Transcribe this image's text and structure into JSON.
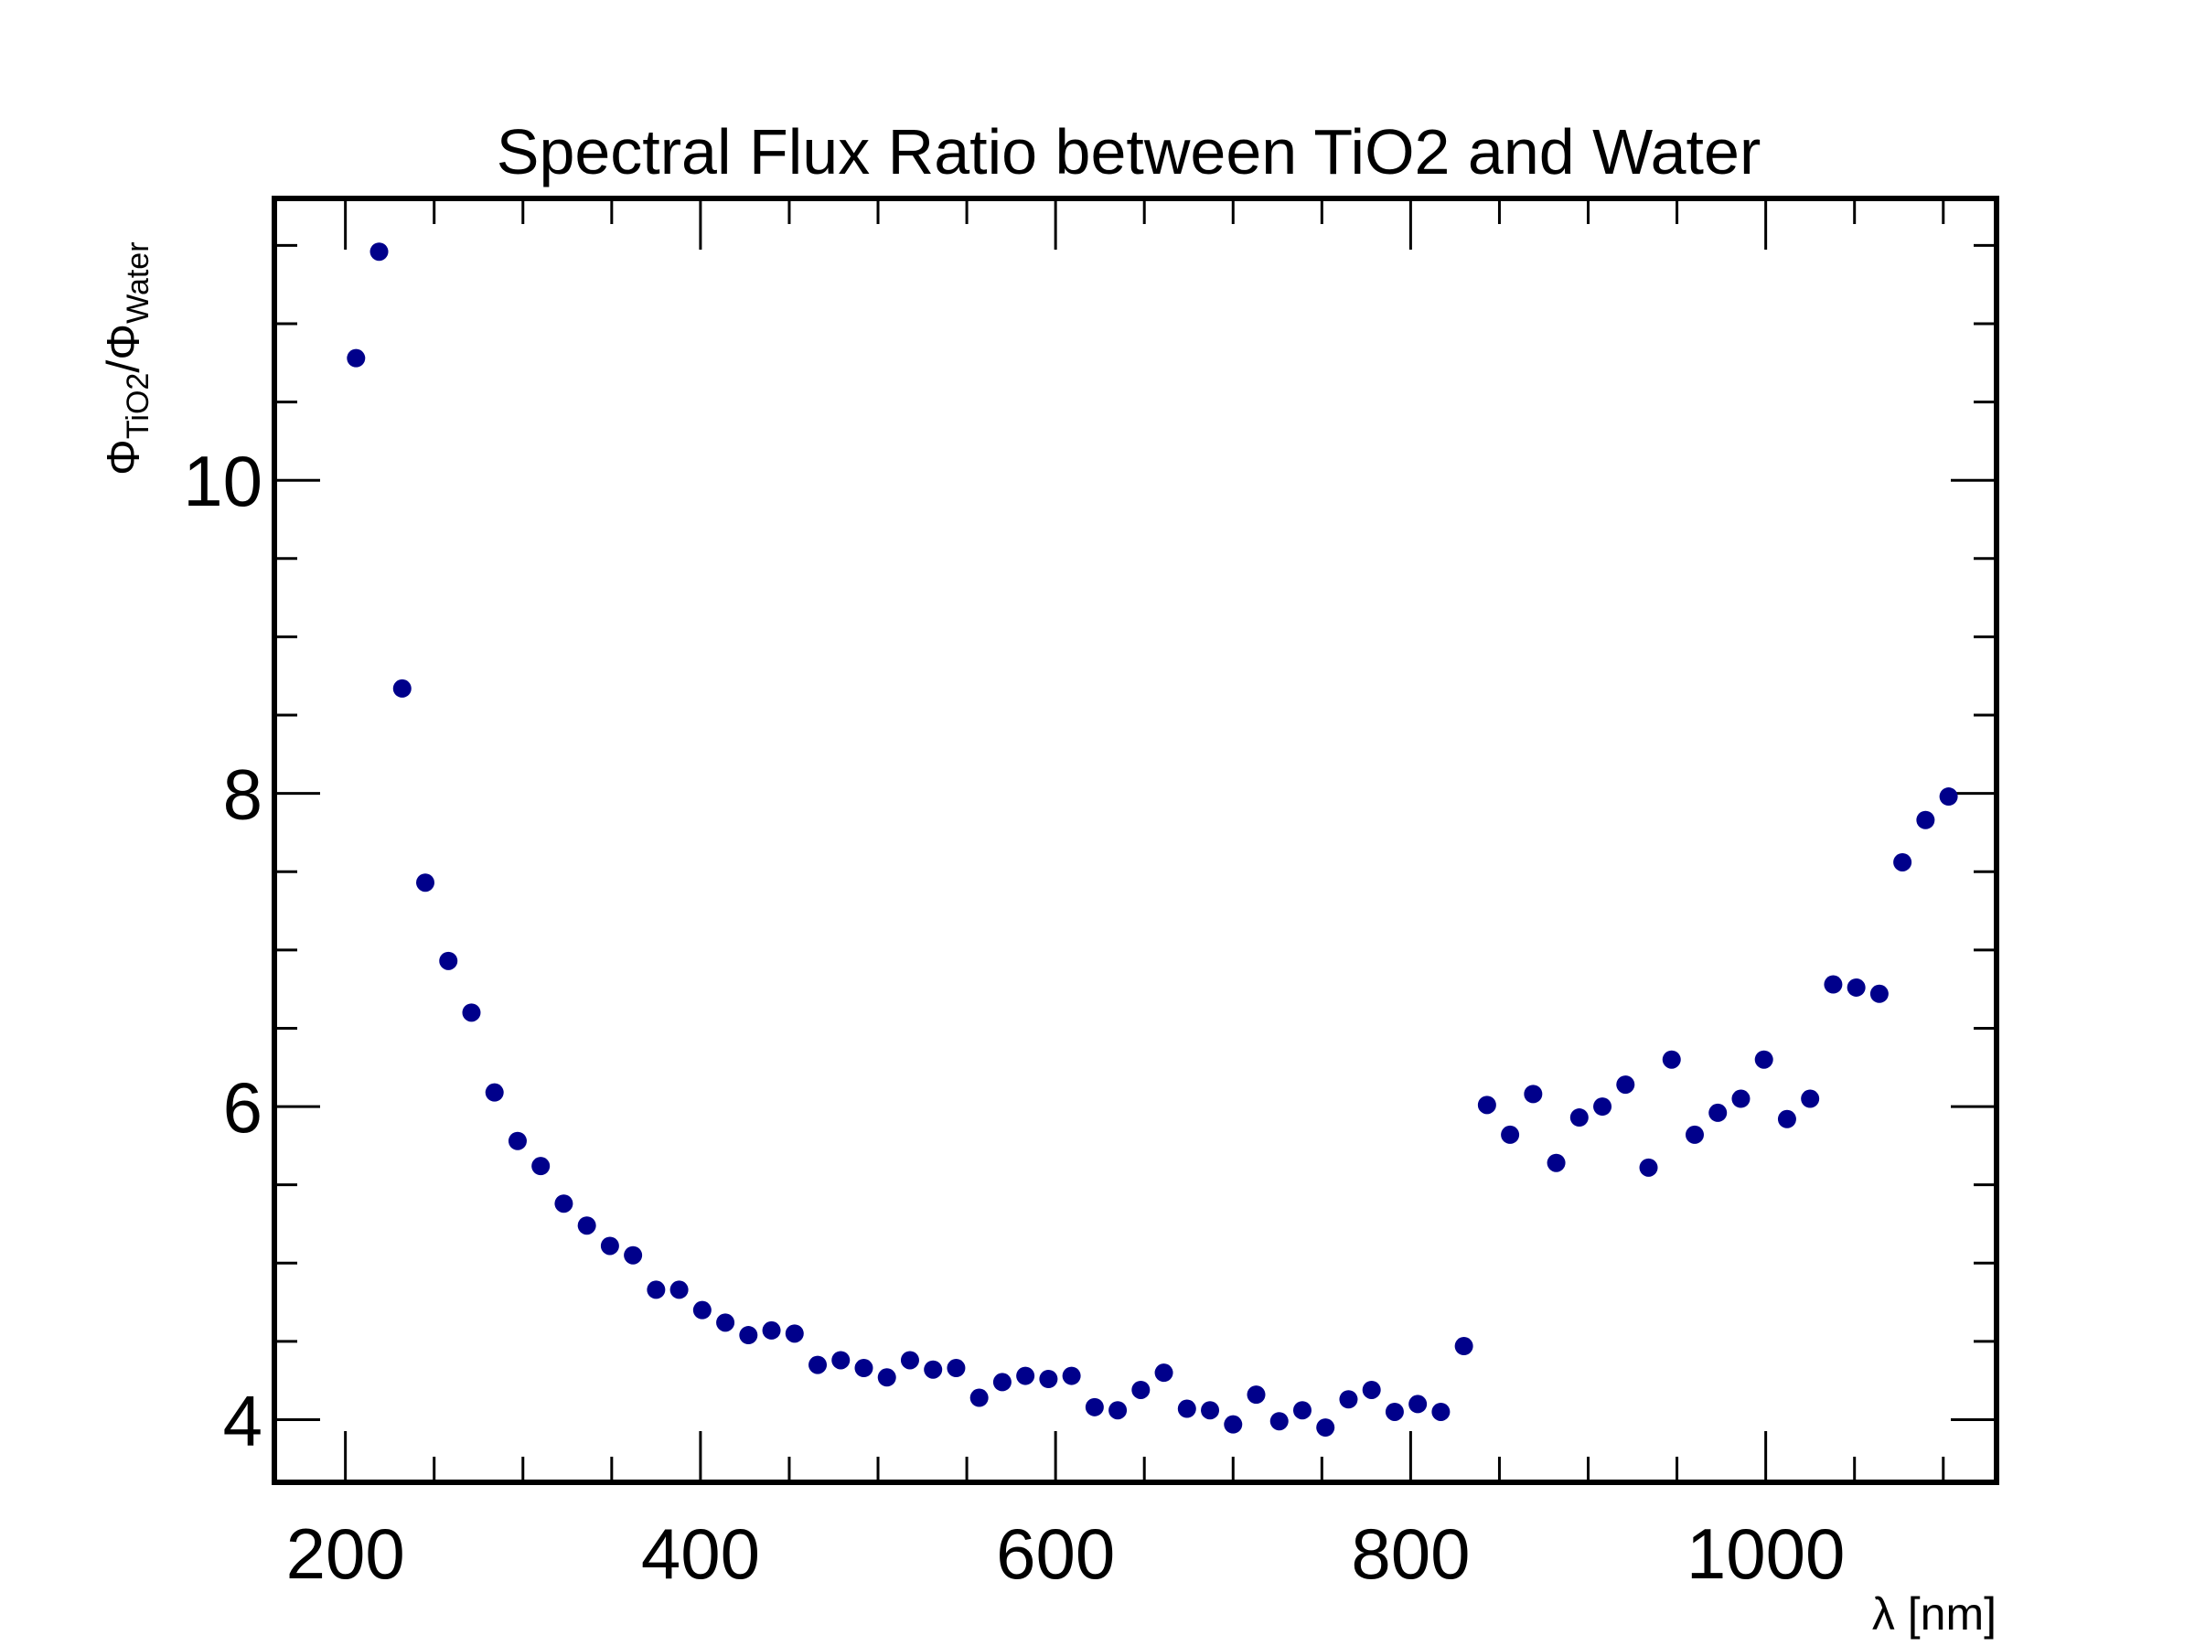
{
  "chart_data": {
    "type": "scatter",
    "title": "Spectral Flux Ratio between TiO2 and Water",
    "xlabel": "λ [nm]",
    "ylabel": {
      "main": "Φ",
      "num_sub": "TiO2",
      "sep": "/Φ",
      "den_sub": "Water"
    },
    "xlim": [
      160,
      1130
    ],
    "ylim": [
      3.6,
      11.8
    ],
    "x_major_ticks": [
      200,
      400,
      600,
      800,
      1000
    ],
    "x_minor_step": 50,
    "y_major_ticks": [
      4,
      6,
      8,
      10
    ],
    "y_minor_step": 0.5,
    "x_tick_labels": [
      "200",
      "400",
      "600",
      "800",
      "1000"
    ],
    "y_tick_labels": [
      "4",
      "6",
      "8",
      "10"
    ],
    "marker_color": "#00008b",
    "series": [
      {
        "x": [
          206,
          219,
          232,
          245,
          258,
          271,
          284,
          297,
          310,
          323,
          336,
          349,
          362,
          375,
          388,
          401,
          414,
          427,
          440,
          453,
          466,
          479,
          492,
          505,
          518,
          531,
          544,
          557,
          570,
          583,
          596,
          609,
          622,
          635,
          648,
          661,
          674,
          687,
          700,
          713,
          726,
          739,
          752,
          765,
          778,
          791,
          804,
          817,
          830,
          843,
          856,
          869,
          882,
          895,
          908,
          921,
          934,
          947,
          960,
          973,
          986,
          999,
          1012,
          1025,
          1038,
          1051,
          1064,
          1077,
          1090,
          1103
        ],
        "y": [
          10.78,
          11.46,
          8.67,
          7.43,
          6.93,
          6.6,
          6.09,
          5.78,
          5.62,
          5.38,
          5.24,
          5.11,
          5.05,
          4.83,
          4.83,
          4.7,
          4.62,
          4.54,
          4.57,
          4.55,
          4.35,
          4.38,
          4.33,
          4.27,
          4.38,
          4.32,
          4.33,
          4.14,
          4.24,
          4.28,
          4.26,
          4.28,
          4.08,
          4.06,
          4.19,
          4.3,
          4.07,
          4.06,
          3.97,
          4.16,
          3.99,
          4.06,
          3.95,
          4.13,
          4.19,
          4.05,
          4.1,
          4.05,
          4.47,
          6.01,
          5.82,
          6.08,
          5.64,
          5.93,
          6.0,
          6.14,
          5.61,
          6.3,
          5.82,
          5.96,
          6.05,
          6.3,
          5.92,
          6.05,
          6.78,
          6.76,
          6.72,
          7.56,
          7.83,
          7.98
        ]
      }
    ]
  }
}
